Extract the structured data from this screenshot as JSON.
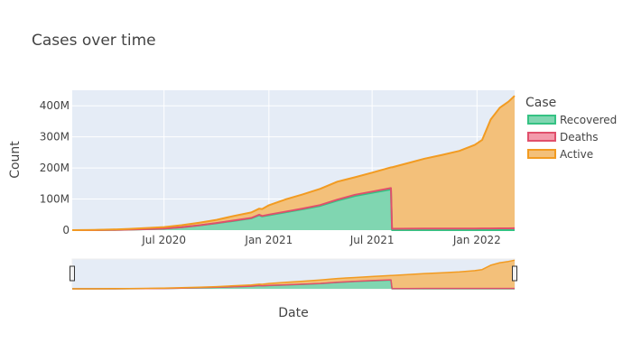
{
  "chart_data": {
    "type": "area",
    "title": "Cases over time",
    "xlabel": "Date",
    "ylabel": "Count",
    "x_range": [
      "2020-01-22",
      "2022-03-08"
    ],
    "ylim": [
      0,
      450
    ],
    "y_unit": "M",
    "x_ticks": [
      {
        "date": "2020-07-01",
        "label": "Jul 2020"
      },
      {
        "date": "2021-01-01",
        "label": "Jan 2021"
      },
      {
        "date": "2021-07-01",
        "label": "Jul 2021"
      },
      {
        "date": "2022-01-01",
        "label": "Jan 2022"
      }
    ],
    "y_ticks": [
      {
        "value": 0,
        "label": "0"
      },
      {
        "value": 100,
        "label": "100M"
      },
      {
        "value": 200,
        "label": "200M"
      },
      {
        "value": 300,
        "label": "300M"
      },
      {
        "value": 400,
        "label": "400M"
      }
    ],
    "stacked": true,
    "x": [
      "2020-01-22",
      "2020-03-01",
      "2020-04-01",
      "2020-05-01",
      "2020-06-01",
      "2020-07-01",
      "2020-08-01",
      "2020-09-01",
      "2020-10-01",
      "2020-11-01",
      "2020-12-01",
      "2020-12-15",
      "2020-12-20",
      "2021-01-01",
      "2021-02-01",
      "2021-03-01",
      "2021-04-01",
      "2021-05-01",
      "2021-06-01",
      "2021-07-01",
      "2021-08-03",
      "2021-08-05",
      "2021-09-01",
      "2021-10-01",
      "2021-11-01",
      "2021-12-01",
      "2021-12-28",
      "2022-01-10",
      "2022-01-25",
      "2022-02-10",
      "2022-02-25",
      "2022-03-08"
    ],
    "series": [
      {
        "name": "Recovered",
        "color": "#2ca02c",
        "fill": "#80d6b1",
        "line": "#35c283",
        "values": [
          0,
          0.1,
          0.5,
          1.5,
          3,
          5,
          9,
          15,
          22,
          30,
          38,
          48,
          44,
          48,
          58,
          67,
          78,
          95,
          110,
          120,
          131,
          0,
          0,
          0,
          0,
          0,
          0,
          0,
          0,
          0,
          0,
          0
        ]
      },
      {
        "name": "Deaths",
        "color": "#e8556e",
        "fill": "#f39aab",
        "line": "#e0506c",
        "values": [
          0,
          0.02,
          0.05,
          0.1,
          0.2,
          0.3,
          0.5,
          0.7,
          0.9,
          1.1,
          1.3,
          1.5,
          1.6,
          1.8,
          2.2,
          2.5,
          2.8,
          3.2,
          3.7,
          4.0,
          4.3,
          4.3,
          4.5,
          4.8,
          5.0,
          5.2,
          5.3,
          5.4,
          5.6,
          5.8,
          5.9,
          6.0
        ]
      },
      {
        "name": "Active",
        "color": "#f39c12",
        "fill": "#f3c07a",
        "line": "#f29b21",
        "values": [
          0,
          0.5,
          1.5,
          2.5,
          3.8,
          4.7,
          6.5,
          8.3,
          10.1,
          14.9,
          17.7,
          19.5,
          22.4,
          30.2,
          39.8,
          45.5,
          52.2,
          57.8,
          56.3,
          61.0,
          66.7,
          197.7,
          210.5,
          225.2,
          237,
          249.8,
          268.7,
          284.6,
          350.4,
          388.2,
          407.1,
          426
        ]
      }
    ],
    "legend": {
      "title": "Case",
      "position": "right",
      "entries": [
        "Recovered",
        "Deaths",
        "Active"
      ]
    },
    "rangeslider": true,
    "grid": true
  }
}
